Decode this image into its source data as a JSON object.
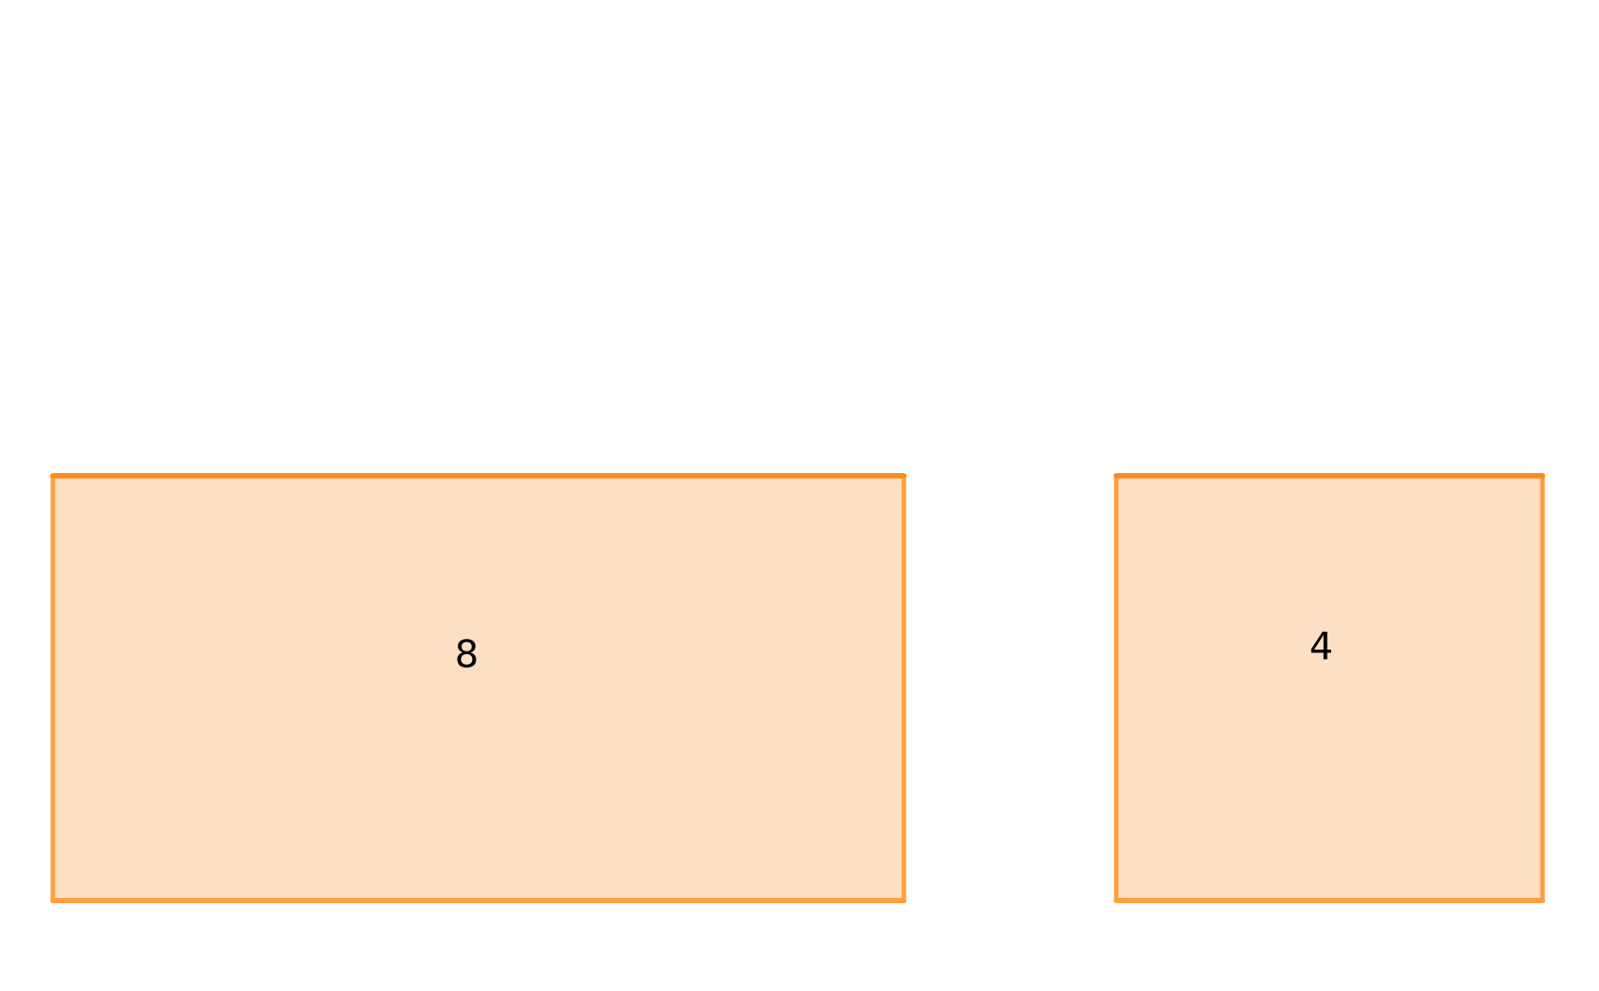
{
  "blocks": [
    {
      "label": "8"
    },
    {
      "label": "4"
    }
  ],
  "colors": {
    "fill": "#fddfc3",
    "top_edge": "#ff8c1a",
    "side_edge": "#ff9f40"
  }
}
